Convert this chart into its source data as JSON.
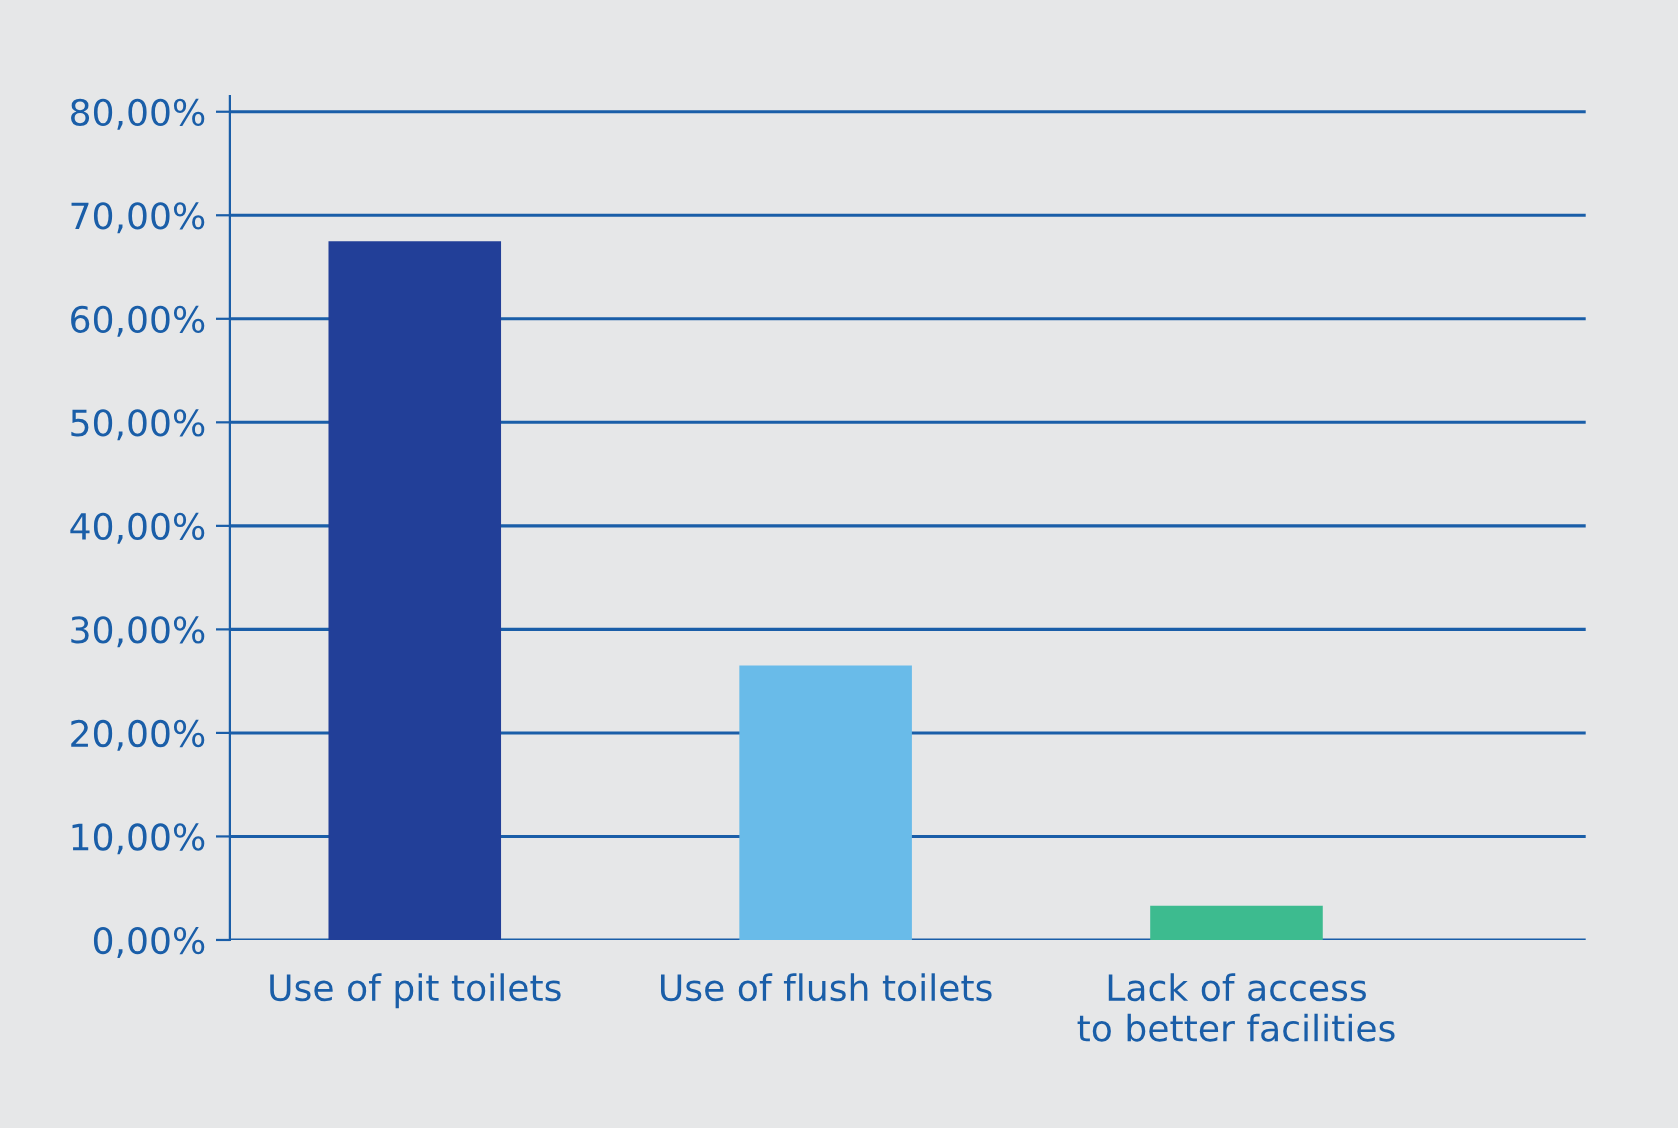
{
  "chart_data": {
    "type": "bar",
    "categories": [
      "Use of pit toilets",
      "Use of flush toilets",
      "Lack of access\nto better facilities"
    ],
    "values": [
      67.5,
      26.5,
      3.3
    ],
    "colors": [
      "#223f98",
      "#69bbe9",
      "#3dbb8f"
    ],
    "ylim": [
      0,
      81.5
    ],
    "yticks": [
      {
        "value": 0,
        "label": "0,00%"
      },
      {
        "value": 10,
        "label": "10,00%"
      },
      {
        "value": 20,
        "label": "20,00%"
      },
      {
        "value": 30,
        "label": "30,00%"
      },
      {
        "value": 40,
        "label": "40,00%"
      },
      {
        "value": 50,
        "label": "50,00%"
      },
      {
        "value": 60,
        "label": "60,00%"
      },
      {
        "value": 70,
        "label": "70,00%"
      },
      {
        "value": 80,
        "label": "80,00%"
      }
    ],
    "grid": "y",
    "legend": false
  }
}
